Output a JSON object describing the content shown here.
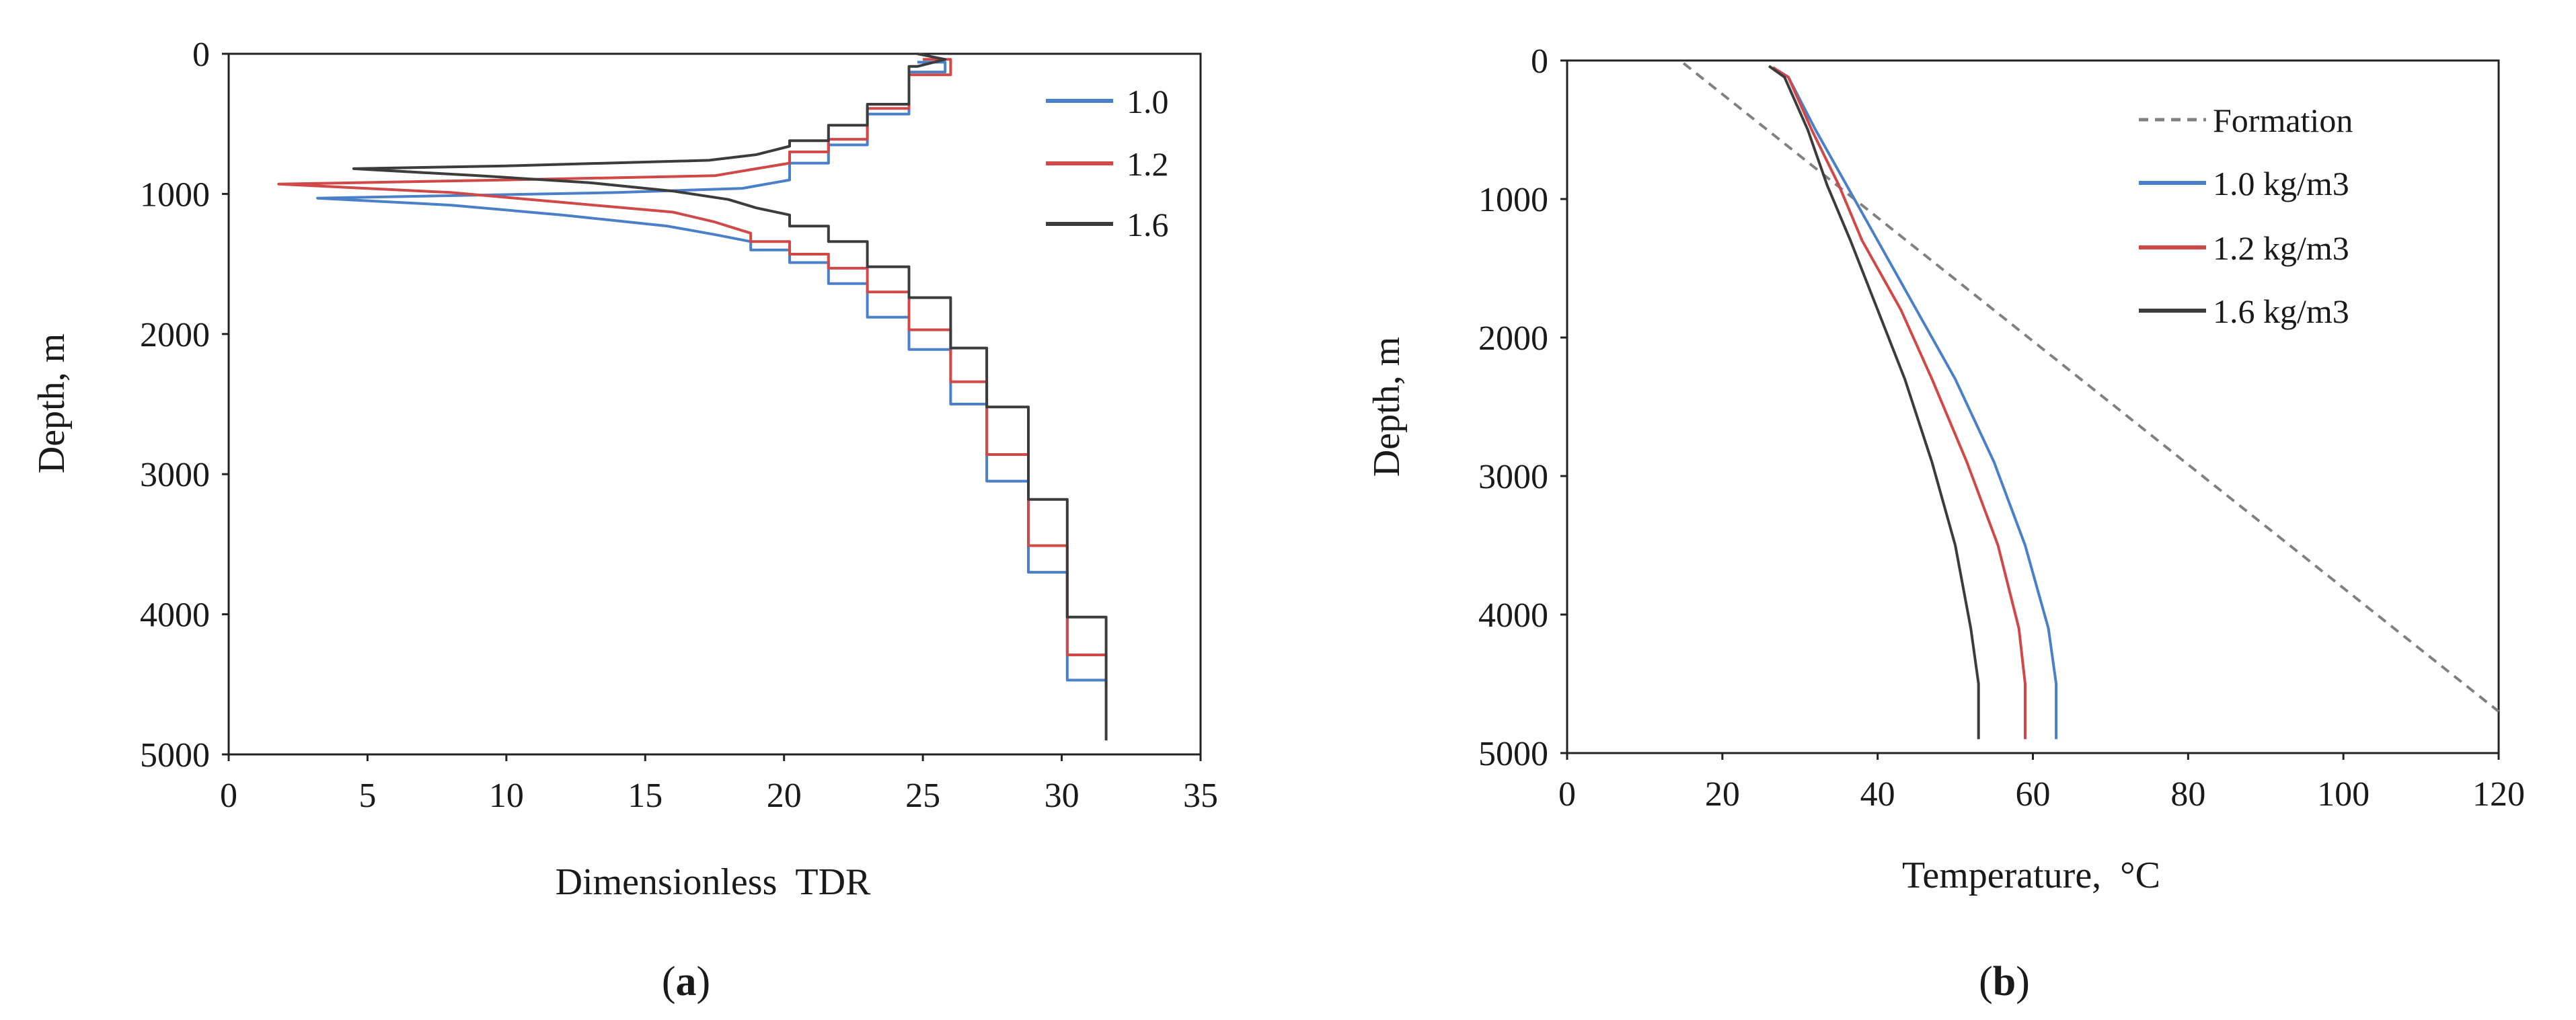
{
  "chart_data": [
    {
      "id": "a",
      "type": "line",
      "title": "",
      "caption": {
        "open": "(",
        "letter": "a",
        "close": ")"
      },
      "xlabel": "Dimensionless  TDR",
      "ylabel": "Depth, m",
      "xlim": [
        0,
        35
      ],
      "ylim": [
        0,
        5000
      ],
      "y_inverted": true,
      "xticks": [
        0,
        5,
        10,
        15,
        20,
        25,
        30,
        35
      ],
      "yticks": [
        0,
        1000,
        2000,
        3000,
        4000,
        5000
      ],
      "legend_position": "top-right",
      "series": [
        {
          "name": "1.0",
          "color": "#4a7fc9",
          "points": [
            [
              24.8,
              60
            ],
            [
              25.8,
              60
            ],
            [
              25.8,
              130
            ],
            [
              24.5,
              130
            ],
            [
              24.5,
              430
            ],
            [
              23.0,
              430
            ],
            [
              23.0,
              650
            ],
            [
              21.6,
              650
            ],
            [
              21.6,
              780
            ],
            [
              20.2,
              780
            ],
            [
              20.2,
              900
            ],
            [
              18.5,
              960
            ],
            [
              14.0,
              990
            ],
            [
              3.2,
              1030
            ],
            [
              8.0,
              1080
            ],
            [
              12.0,
              1150
            ],
            [
              15.8,
              1230
            ],
            [
              17.5,
              1290
            ],
            [
              18.8,
              1340
            ],
            [
              18.8,
              1400
            ],
            [
              20.2,
              1400
            ],
            [
              20.2,
              1490
            ],
            [
              21.6,
              1490
            ],
            [
              21.6,
              1640
            ],
            [
              23.0,
              1640
            ],
            [
              23.0,
              1880
            ],
            [
              24.5,
              1880
            ],
            [
              24.5,
              2110
            ],
            [
              26.0,
              2110
            ],
            [
              26.0,
              2500
            ],
            [
              27.3,
              2500
            ],
            [
              27.3,
              3050
            ],
            [
              28.8,
              3050
            ],
            [
              28.8,
              3700
            ],
            [
              30.2,
              3700
            ],
            [
              30.2,
              4470
            ],
            [
              31.6,
              4470
            ],
            [
              31.6,
              4520
            ]
          ]
        },
        {
          "name": "1.2",
          "color": "#d04848",
          "points": [
            [
              25.0,
              40
            ],
            [
              26.0,
              40
            ],
            [
              26.0,
              150
            ],
            [
              24.5,
              150
            ],
            [
              24.5,
              390
            ],
            [
              23.0,
              390
            ],
            [
              23.0,
              610
            ],
            [
              21.6,
              610
            ],
            [
              21.6,
              700
            ],
            [
              20.2,
              700
            ],
            [
              20.2,
              780
            ],
            [
              19.0,
              820
            ],
            [
              17.5,
              870
            ],
            [
              10.0,
              900
            ],
            [
              1.8,
              930
            ],
            [
              8.0,
              990
            ],
            [
              12.0,
              1060
            ],
            [
              16.0,
              1130
            ],
            [
              17.5,
              1200
            ],
            [
              18.8,
              1280
            ],
            [
              18.8,
              1340
            ],
            [
              20.2,
              1340
            ],
            [
              20.2,
              1430
            ],
            [
              21.6,
              1430
            ],
            [
              21.6,
              1530
            ],
            [
              23.0,
              1530
            ],
            [
              23.0,
              1700
            ],
            [
              24.5,
              1700
            ],
            [
              24.5,
              1970
            ],
            [
              26.0,
              1970
            ],
            [
              26.0,
              2340
            ],
            [
              27.3,
              2340
            ],
            [
              27.3,
              2860
            ],
            [
              28.8,
              2860
            ],
            [
              28.8,
              3510
            ],
            [
              30.2,
              3510
            ],
            [
              30.2,
              4290
            ],
            [
              31.6,
              4290
            ],
            [
              31.6,
              4320
            ]
          ]
        },
        {
          "name": "1.6",
          "color": "#3c3c3c",
          "points": [
            [
              24.8,
              0
            ],
            [
              25.8,
              40
            ],
            [
              24.8,
              90
            ],
            [
              24.5,
              90
            ],
            [
              24.5,
              360
            ],
            [
              23.0,
              360
            ],
            [
              23.0,
              510
            ],
            [
              21.6,
              510
            ],
            [
              21.6,
              620
            ],
            [
              20.2,
              620
            ],
            [
              20.2,
              660
            ],
            [
              19.0,
              720
            ],
            [
              17.3,
              760
            ],
            [
              10.0,
              800
            ],
            [
              4.5,
              820
            ],
            [
              9.0,
              870
            ],
            [
              13.0,
              920
            ],
            [
              16.0,
              980
            ],
            [
              18.0,
              1040
            ],
            [
              19.0,
              1100
            ],
            [
              20.2,
              1150
            ],
            [
              20.2,
              1230
            ],
            [
              21.6,
              1230
            ],
            [
              21.6,
              1340
            ],
            [
              23.0,
              1340
            ],
            [
              23.0,
              1520
            ],
            [
              24.5,
              1520
            ],
            [
              24.5,
              1740
            ],
            [
              26.0,
              1740
            ],
            [
              26.0,
              2100
            ],
            [
              27.3,
              2100
            ],
            [
              27.3,
              2520
            ],
            [
              28.8,
              2520
            ],
            [
              28.8,
              3180
            ],
            [
              30.2,
              3180
            ],
            [
              30.2,
              4020
            ],
            [
              31.6,
              4020
            ],
            [
              31.6,
              4900
            ]
          ]
        }
      ]
    },
    {
      "id": "b",
      "type": "line",
      "title": "",
      "caption": {
        "open": "(",
        "letter": "b",
        "close": ")"
      },
      "xlabel": "Temperature,  °C",
      "ylabel": "Depth, m",
      "xlim": [
        0,
        120
      ],
      "ylim": [
        0,
        5000
      ],
      "y_inverted": true,
      "xticks": [
        0,
        20,
        40,
        60,
        80,
        100,
        120
      ],
      "yticks": [
        0,
        1000,
        2000,
        3000,
        4000,
        5000
      ],
      "legend_position": "top-right",
      "series": [
        {
          "name": "Formation",
          "color": "#808080",
          "dashed": true,
          "points": [
            [
              15,
              20
            ],
            [
              120,
              4700
            ]
          ]
        },
        {
          "name": "1.0 kg/m3",
          "color": "#4a7fc9",
          "points": [
            [
              26.5,
              50
            ],
            [
              28.5,
              120
            ],
            [
              32,
              500
            ],
            [
              36,
              900
            ],
            [
              40,
              1300
            ],
            [
              45,
              1800
            ],
            [
              50,
              2300
            ],
            [
              55,
              2900
            ],
            [
              59,
              3500
            ],
            [
              62,
              4100
            ],
            [
              63,
              4500
            ],
            [
              63,
              4900
            ]
          ]
        },
        {
          "name": "1.2 kg/m3",
          "color": "#d04848",
          "points": [
            [
              26.5,
              50
            ],
            [
              28.5,
              120
            ],
            [
              31.5,
              500
            ],
            [
              35,
              900
            ],
            [
              38,
              1300
            ],
            [
              43,
              1800
            ],
            [
              47,
              2300
            ],
            [
              51.5,
              2900
            ],
            [
              55.5,
              3500
            ],
            [
              58.2,
              4100
            ],
            [
              59,
              4500
            ],
            [
              59,
              4900
            ]
          ]
        },
        {
          "name": "1.6 kg/m3",
          "color": "#3c3c3c",
          "points": [
            [
              26,
              40
            ],
            [
              28,
              120
            ],
            [
              31,
              500
            ],
            [
              33.5,
              900
            ],
            [
              36.5,
              1300
            ],
            [
              40,
              1800
            ],
            [
              43.5,
              2300
            ],
            [
              47,
              2900
            ],
            [
              50,
              3500
            ],
            [
              52,
              4100
            ],
            [
              53,
              4500
            ],
            [
              53,
              4900
            ]
          ]
        }
      ]
    }
  ]
}
